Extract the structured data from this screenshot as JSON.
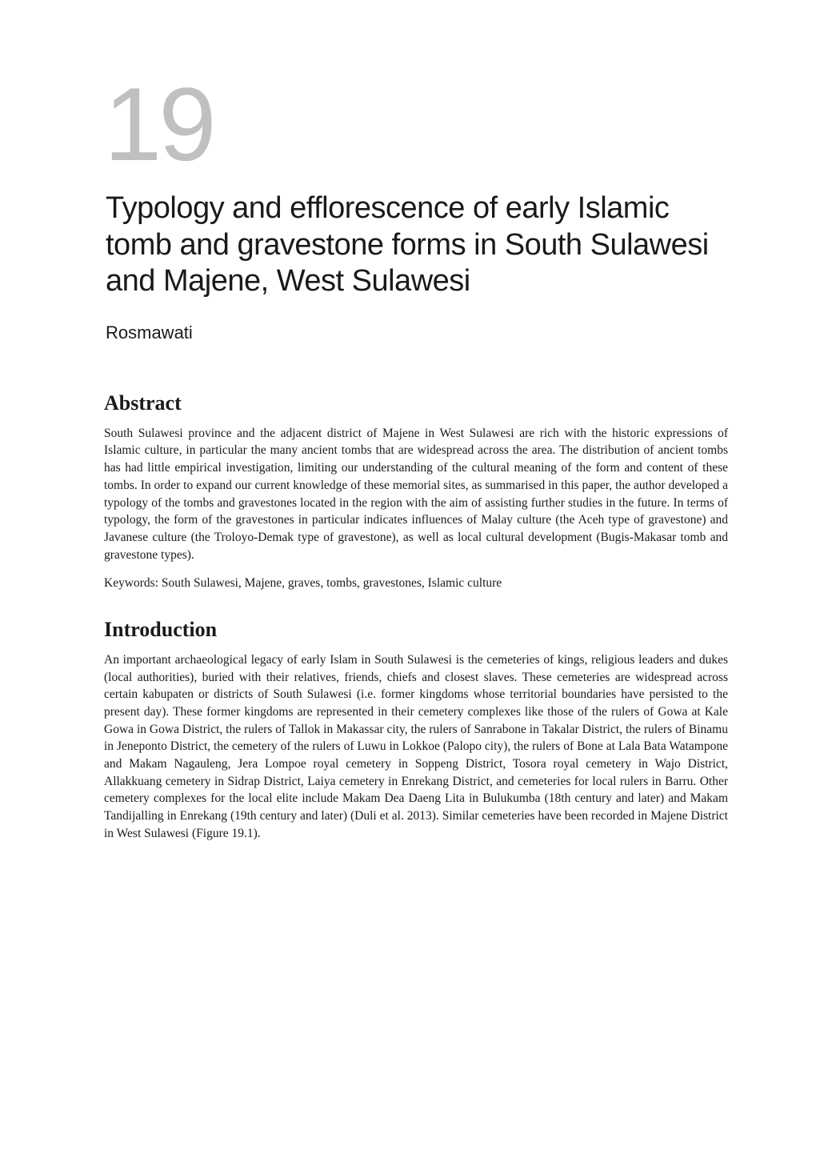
{
  "chapter": {
    "number": "19",
    "title": "Typology and efflorescence of early Islamic tomb and gravestone forms in South Sulawesi and Majene, West Sulawesi",
    "author": "Rosmawati"
  },
  "sections": {
    "abstract": {
      "heading": "Abstract",
      "paragraphs": [
        "South Sulawesi province and the adjacent district of Majene in West Sulawesi are rich with the historic expressions of Islamic culture, in particular the many ancient tombs that are widespread across the area. The distribution of ancient tombs has had little empirical investigation, limiting our understanding of the cultural meaning of the form and content of these tombs. In order to expand our current knowledge of these memorial sites, as summarised in this paper, the author developed a typology of the tombs and gravestones located in the region with the aim of assisting further studies in the future. In terms of typology, the form of the gravestones in particular indicates influences of Malay culture (the Aceh type of gravestone) and Javanese culture (the Troloyo-Demak type of gravestone), as well as local cultural development (Bugis-Makasar tomb and gravestone types)."
      ],
      "keywords": "Keywords: South Sulawesi, Majene, graves, tombs, gravestones, Islamic culture"
    },
    "introduction": {
      "heading": "Introduction",
      "paragraphs": [
        "An important archaeological legacy of early Islam in South Sulawesi is the cemeteries of kings, religious leaders and dukes (local authorities), buried with their relatives, friends, chiefs and closest slaves. These cemeteries are widespread across certain kabupaten or districts of South Sulawesi (i.e. former kingdoms whose territorial boundaries have persisted to the present day). These former kingdoms are represented in their cemetery complexes like those of the rulers of Gowa at Kale Gowa in Gowa District, the rulers of Tallok in Makassar city, the rulers of Sanrabone in Takalar District, the rulers of Binamu in Jeneponto District, the cemetery of the rulers of Luwu in Lokkoe (Palopo city), the rulers of Bone at Lala Bata Watampone and Makam Nagauleng, Jera Lompoe royal cemetery in Soppeng District, Tosora royal cemetery in Wajo District, Allakkuang cemetery in Sidrap District, Laiya cemetery in Enrekang District, and cemeteries for local rulers in Barru. Other cemetery complexes for the local elite include Makam Dea Daeng Lita in Bulukumba (18th century and later) and Makam Tandijalling in Enrekang (19th century and later) (Duli et al. 2013). Similar cemeteries have been recorded in Majene District in West Sulawesi (Figure 19.1)."
      ]
    }
  }
}
